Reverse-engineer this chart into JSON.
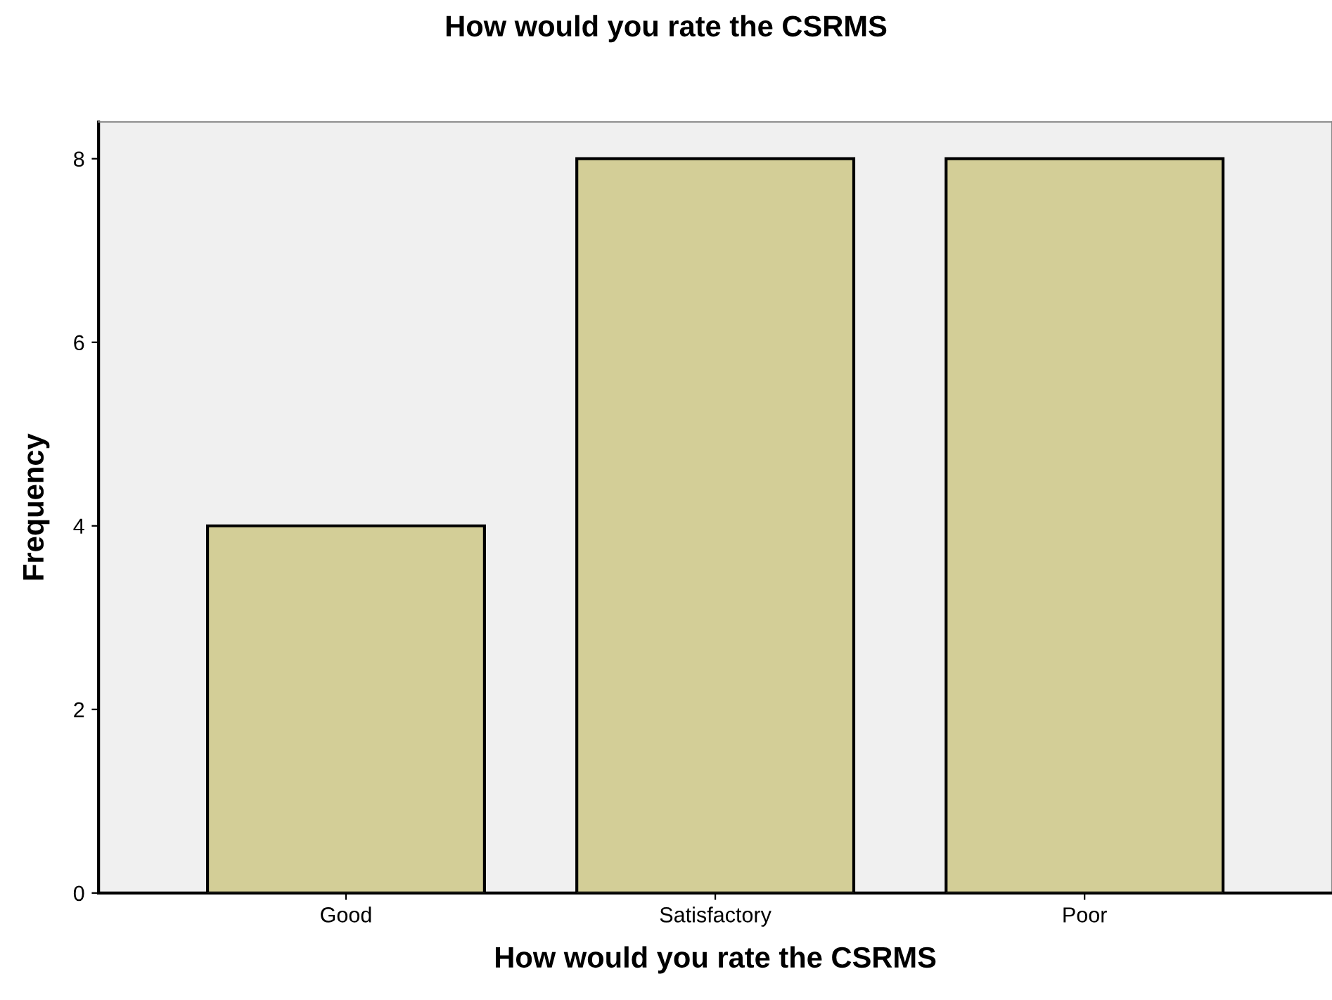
{
  "chart_data": {
    "type": "bar",
    "title": "How would you rate the CSRMS",
    "xlabel": "How would you rate the CSRMS",
    "ylabel": "Frequency",
    "categories": [
      "Good",
      "Satisfactory",
      "Poor"
    ],
    "values": [
      4,
      8,
      8
    ],
    "color": "#d3ce97",
    "ylim": [
      0,
      8.4
    ],
    "yticks": [
      0,
      2,
      4,
      6,
      8
    ],
    "grid": false,
    "legend": false
  }
}
